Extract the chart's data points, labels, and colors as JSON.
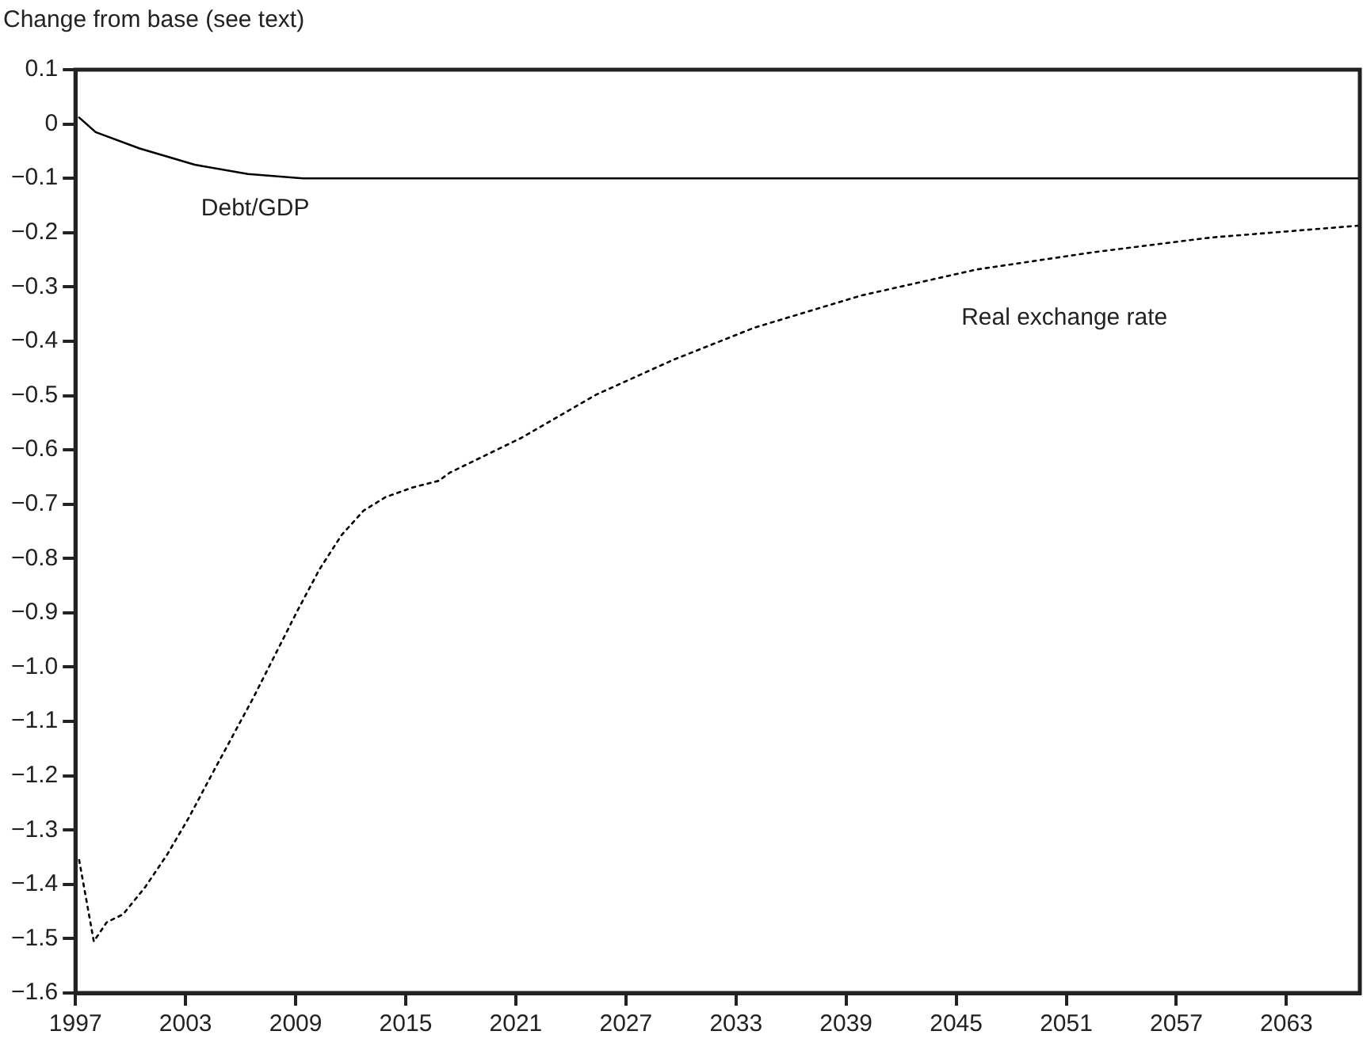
{
  "chart_data": {
    "type": "line",
    "ylabel": "Change from base (see text)",
    "xlim": [
      1997,
      2067
    ],
    "xticks": [
      1997,
      2003,
      2009,
      2015,
      2021,
      2027,
      2033,
      2039,
      2045,
      2051,
      2057,
      2063
    ],
    "ylim": [
      -1.6,
      0.1
    ],
    "yticks": [
      {
        "value": 0.1,
        "label": "0.1"
      },
      {
        "value": 0,
        "label": "0"
      },
      {
        "value": -0.1,
        "label": "−0.1"
      },
      {
        "value": -0.2,
        "label": "−0.2"
      },
      {
        "value": -0.3,
        "label": "−0.3"
      },
      {
        "value": -0.4,
        "label": "−0.4"
      },
      {
        "value": -0.5,
        "label": "−0.5"
      },
      {
        "value": -0.6,
        "label": "−0.6"
      },
      {
        "value": -0.7,
        "label": "−0.7"
      },
      {
        "value": -0.8,
        "label": "−0.8"
      },
      {
        "value": -0.9,
        "label": "−0.9"
      },
      {
        "value": -1.0,
        "label": "−1.0"
      },
      {
        "value": -1.1,
        "label": "−1.1"
      },
      {
        "value": -1.2,
        "label": "−1.2"
      },
      {
        "value": -1.3,
        "label": "−1.3"
      },
      {
        "value": -1.4,
        "label": "−1.4"
      },
      {
        "value": -1.5,
        "label": "−1.5"
      },
      {
        "value": -1.6,
        "label": "−1.6"
      }
    ],
    "grid": false,
    "legend": false,
    "marker": "none",
    "series": [
      {
        "name": "Debt/GDP",
        "color": "#000000",
        "line_style": "solid",
        "x": [
          1997.2,
          1998.1,
          2000.5,
          2003.5,
          2006.4,
          2009.4,
          2015,
          2025,
          2035,
          2045,
          2055,
          2067
        ],
        "values": [
          0.012,
          -0.015,
          -0.045,
          -0.075,
          -0.092,
          -0.1,
          -0.1,
          -0.1,
          -0.1,
          -0.1,
          -0.1,
          -0.1
        ]
      },
      {
        "name": "Real exchange rate",
        "color": "#000000",
        "line_style": "dotted",
        "x": [
          1997.2,
          1998,
          1998.7,
          1999.6,
          2000.8,
          2002,
          2003.2,
          2004.3,
          2005.5,
          2006.7,
          2007.9,
          2009.1,
          2010.3,
          2011.5,
          2012.7,
          2013.9,
          2015.4,
          2016.8,
          2017.4,
          2021.3,
          2025.4,
          2029.6,
          2034,
          2039.8,
          2046.1,
          2052.5,
          2058.9,
          2067
        ],
        "values": [
          -1.355,
          -1.505,
          -1.47,
          -1.455,
          -1.405,
          -1.345,
          -1.276,
          -1.206,
          -1.131,
          -1.056,
          -0.976,
          -0.896,
          -0.82,
          -0.757,
          -0.712,
          -0.687,
          -0.669,
          -0.657,
          -0.642,
          -0.578,
          -0.498,
          -0.434,
          -0.375,
          -0.316,
          -0.268,
          -0.236,
          -0.209,
          -0.187
        ]
      }
    ]
  }
}
